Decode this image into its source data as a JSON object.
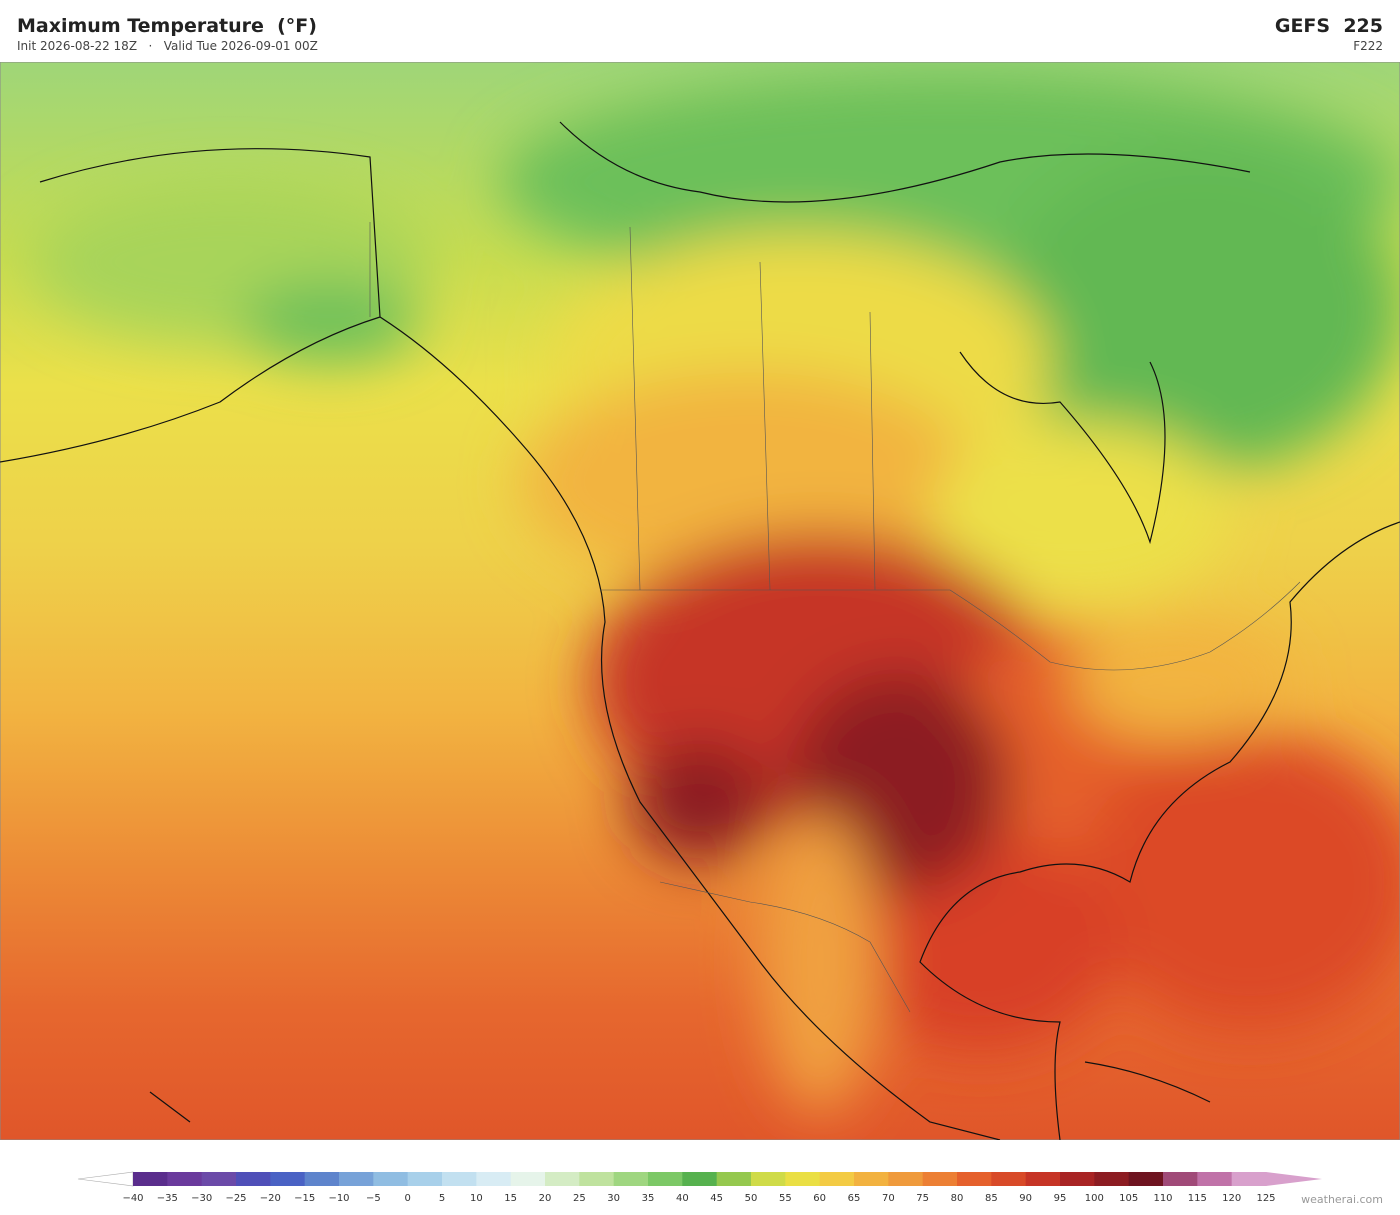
{
  "header": {
    "title": "Maximum Temperature  (°F)",
    "init": "Init 2026-08-22 18Z",
    "separator": "·",
    "valid": "Valid Tue 2026-09-01 00Z",
    "model": "GEFS  225",
    "frame": "F222"
  },
  "colorbar": {
    "ticks": [
      "−40",
      "−35",
      "−30",
      "−25",
      "−20",
      "−15",
      "−10",
      "−5",
      "0",
      "5",
      "10",
      "15",
      "20",
      "25",
      "30",
      "35",
      "40",
      "45",
      "50",
      "55",
      "60",
      "65",
      "70",
      "75",
      "80",
      "85",
      "90",
      "95",
      "100",
      "105",
      "110",
      "115",
      "120",
      "125"
    ],
    "colors": [
      "#5a2d8c",
      "#6a3a9c",
      "#6b4aa8",
      "#4f4fb8",
      "#4a62c4",
      "#5e84cc",
      "#77a2d8",
      "#90bde2",
      "#a8d0ea",
      "#c2e0f0",
      "#d8ecf4",
      "#e6f4ea",
      "#d4ecc4",
      "#bfe29e",
      "#9fd680",
      "#7cc866",
      "#56b14e",
      "#95c84e",
      "#cfdb48",
      "#eadf44",
      "#f3cb44",
      "#f2b240",
      "#ef9a3c",
      "#ec7f34",
      "#e5602c",
      "#d84a28",
      "#c63426",
      "#a82424",
      "#8c1c22",
      "#6e1420",
      "#a04a78",
      "#c072a8",
      "#d8a0cc"
    ],
    "under_color": "#ffffff",
    "over_color": "#d8a0cc"
  },
  "footer": {
    "credit": "weatherai.com"
  }
}
